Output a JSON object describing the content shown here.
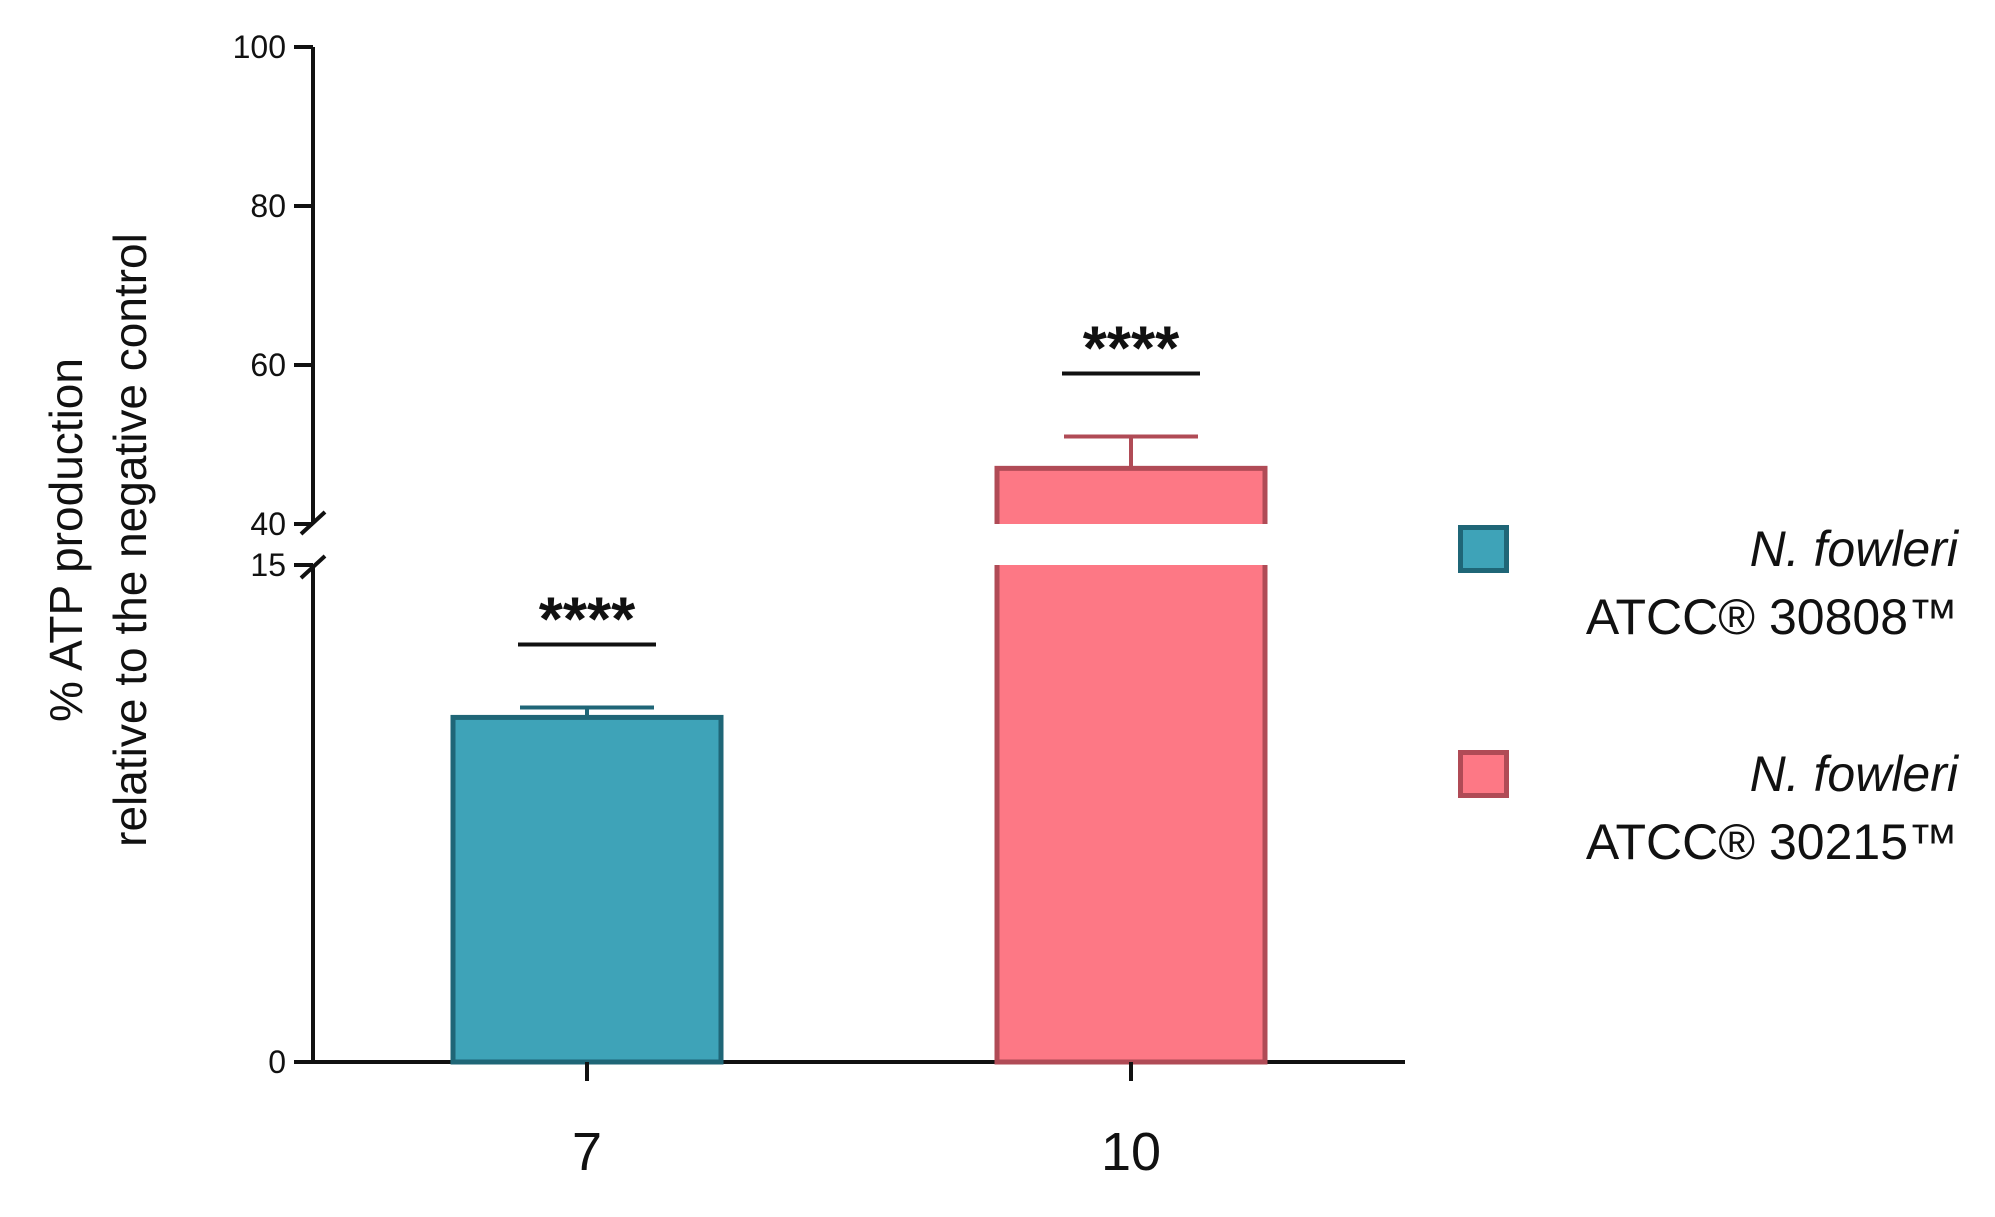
{
  "chart_data": {
    "type": "bar",
    "ylabel_lines": [
      "% ATP production",
      "relative to the negative control"
    ],
    "xlabel": "",
    "categories": [
      "7",
      "10"
    ],
    "y_axis": {
      "broken": true,
      "lower_range": [
        0,
        15
      ],
      "upper_range": [
        40,
        100
      ],
      "lower_ticks": [
        "0",
        "15"
      ],
      "upper_ticks": [
        "40",
        "60",
        "80",
        "100"
      ]
    },
    "series": [
      {
        "name_species": "N. fowleri",
        "name_strain": "ATCC® 30808™",
        "category": "7",
        "value": 10.4,
        "error": 0.3,
        "significance": "****",
        "fill": "#3ea3b8",
        "stroke": "#1f6677"
      },
      {
        "name_species": "N. fowleri",
        "name_strain": "ATCC® 30215™",
        "category": "10",
        "value": 47,
        "error": 4,
        "significance": "****",
        "fill": "#fd7885",
        "stroke": "#b04b56"
      }
    ],
    "legend_position": "right"
  }
}
